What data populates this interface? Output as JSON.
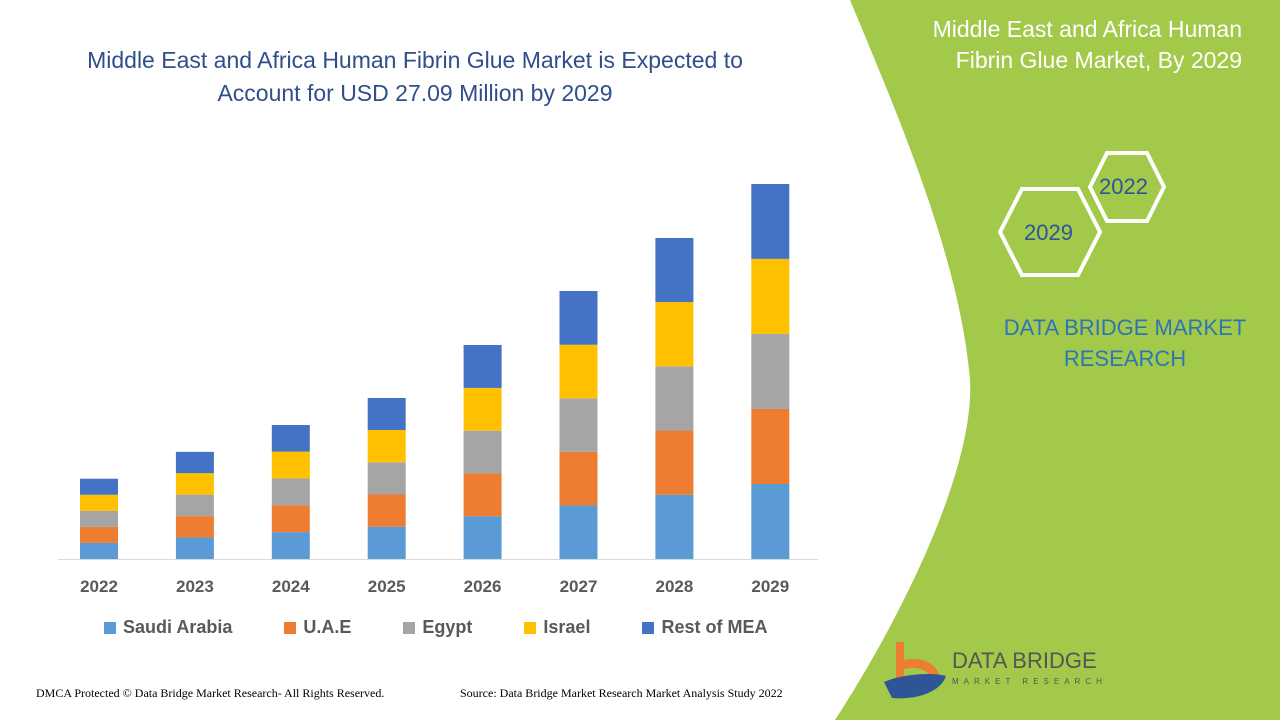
{
  "header": {
    "title": "Middle East and Africa Human Fibrin Glue Market is Expected to Account for USD 27.09 Million by 2029",
    "side_title": "Middle East and Africa Human Fibrin Glue Market, By 2029",
    "hex_years": [
      "2022",
      "2029"
    ],
    "brand": "DATA BRIDGE MARKET RESEARCH"
  },
  "footer": {
    "copyright": "DMCA Protected © Data Bridge Market Research- All Rights Reserved.",
    "source": "Source: Data Bridge Market Research Market Analysis Study 2022"
  },
  "logo": {
    "name": "DATA BRIDGE",
    "sub": "MARKET RESEARCH"
  },
  "colors": {
    "accent_green": "#a2c94a",
    "title_blue": "#2f4e8c"
  },
  "chart_data": {
    "type": "bar",
    "stacked": true,
    "title": "",
    "xlabel": "",
    "ylabel": "",
    "unit": "USD Million",
    "categories": [
      "2022",
      "2023",
      "2024",
      "2025",
      "2026",
      "2027",
      "2028",
      "2029"
    ],
    "ylim": [
      0,
      27.09
    ],
    "grid": false,
    "legend_position": "bottom",
    "series": [
      {
        "name": "Saudi Arabia",
        "color": "#5b9bd5",
        "values": [
          1.16,
          1.55,
          1.94,
          2.33,
          3.09,
          3.87,
          4.64,
          5.42
        ]
      },
      {
        "name": "U.A.E",
        "color": "#ed7d31",
        "values": [
          1.16,
          1.55,
          1.94,
          2.33,
          3.09,
          3.87,
          4.64,
          5.42
        ]
      },
      {
        "name": "Egypt",
        "color": "#a5a5a5",
        "values": [
          1.16,
          1.55,
          1.94,
          2.33,
          3.09,
          3.87,
          4.64,
          5.42
        ]
      },
      {
        "name": "Israel",
        "color": "#ffc000",
        "values": [
          1.16,
          1.55,
          1.94,
          2.33,
          3.09,
          3.87,
          4.64,
          5.42
        ]
      },
      {
        "name": "Rest of MEA",
        "color": "#4472c4",
        "values": [
          1.16,
          1.54,
          1.92,
          2.31,
          3.1,
          3.88,
          4.63,
          5.41
        ]
      }
    ]
  }
}
